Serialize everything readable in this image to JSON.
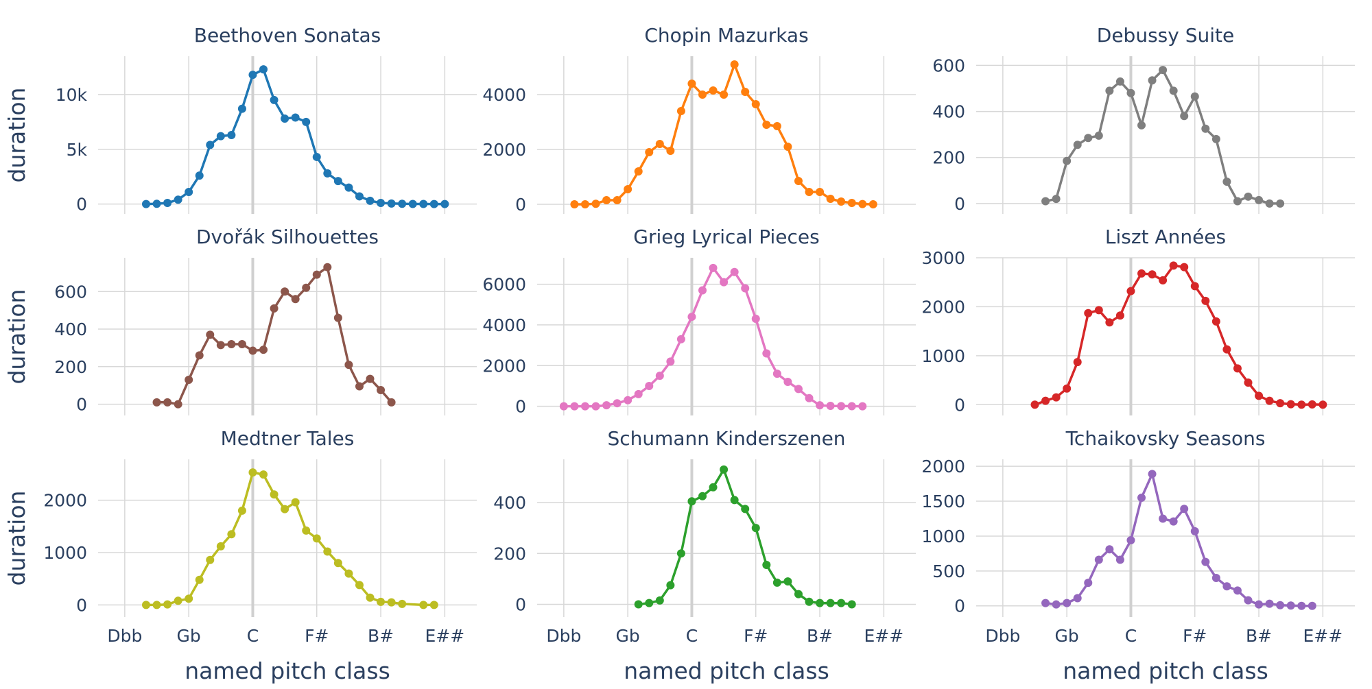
{
  "layout": {
    "ylabel": "duration",
    "xlabel": "named pitch class",
    "x_ticks": [
      "Dbb",
      "Gb",
      "C",
      "F#",
      "B#",
      "E##"
    ],
    "x_tick_positions": [
      -14,
      -8,
      -2,
      4,
      10,
      16
    ],
    "x_zero_line": -2,
    "xlim": [
      -16.5,
      19.0
    ]
  },
  "chart_data": [
    {
      "type": "line",
      "title": "Beethoven Sonatas",
      "color": "#1f77b4",
      "ylim": [
        -900,
        13500
      ],
      "y_ticks": [
        0,
        5000,
        10000
      ],
      "y_tick_labels": [
        "0",
        "5k",
        "10k"
      ],
      "x": [
        -12,
        -11,
        -10,
        -9,
        -8,
        -7,
        -6,
        -5,
        -4,
        -3,
        -2,
        -1,
        0,
        1,
        2,
        3,
        4,
        5,
        6,
        7,
        8,
        9,
        10,
        11,
        12,
        13,
        14,
        15,
        16
      ],
      "values": [
        0,
        20,
        100,
        400,
        1100,
        2600,
        5400,
        6200,
        6300,
        8700,
        11800,
        12300,
        9500,
        7800,
        7900,
        7500,
        4300,
        2800,
        2100,
        1500,
        700,
        300,
        100,
        50,
        20,
        10,
        5,
        0,
        0
      ]
    },
    {
      "type": "line",
      "title": "Chopin Mazurkas",
      "color": "#ff7f0e",
      "ylim": [
        -350,
        5400
      ],
      "y_ticks": [
        0,
        2000,
        4000
      ],
      "y_tick_labels": [
        "0",
        "2000",
        "4000"
      ],
      "x": [
        -13,
        -12,
        -11,
        -10,
        -9,
        -8,
        -7,
        -6,
        -5,
        -4,
        -3,
        -2,
        -1,
        0,
        1,
        2,
        3,
        4,
        5,
        6,
        7,
        8,
        9,
        10,
        11,
        12,
        13,
        14,
        15
      ],
      "values": [
        0,
        0,
        20,
        150,
        150,
        550,
        1200,
        1900,
        2200,
        1950,
        3400,
        4400,
        4000,
        4150,
        4000,
        5100,
        4100,
        3650,
        2900,
        2850,
        2100,
        850,
        450,
        450,
        200,
        100,
        50,
        10,
        0
      ]
    },
    {
      "type": "line",
      "title": "Debussy Suite",
      "color": "#7f7f7f",
      "ylim": [
        -45,
        640
      ],
      "y_ticks": [
        0,
        200,
        400,
        600
      ],
      "y_tick_labels": [
        "0",
        "200",
        "400",
        "600"
      ],
      "x": [
        -10,
        -9,
        -8,
        -7,
        -6,
        -5,
        -4,
        -3,
        -2,
        -1,
        0,
        1,
        2,
        3,
        4,
        5,
        6,
        7,
        8,
        9,
        10,
        11,
        12
      ],
      "values": [
        10,
        20,
        185,
        255,
        285,
        295,
        490,
        530,
        480,
        340,
        535,
        580,
        490,
        380,
        465,
        325,
        280,
        95,
        10,
        30,
        15,
        0,
        0
      ]
    },
    {
      "type": "line",
      "title": "Dvořák Silhouettes",
      "color": "#8c564b",
      "ylim": [
        -60,
        780
      ],
      "y_ticks": [
        0,
        200,
        400,
        600
      ],
      "y_tick_labels": [
        "0",
        "200",
        "400",
        "600"
      ],
      "x": [
        -11,
        -10,
        -9,
        -8,
        -7,
        -6,
        -5,
        -4,
        -3,
        -2,
        -1,
        0,
        1,
        2,
        3,
        4,
        5,
        6,
        7,
        8,
        9,
        10,
        11
      ],
      "values": [
        10,
        10,
        0,
        130,
        260,
        370,
        315,
        320,
        320,
        285,
        290,
        510,
        600,
        560,
        620,
        690,
        730,
        460,
        210,
        95,
        135,
        75,
        10
      ]
    },
    {
      "type": "line",
      "title": "Grieg Lyrical Pieces",
      "color": "#e377c2",
      "ylim": [
        -450,
        7300
      ],
      "y_ticks": [
        0,
        2000,
        4000,
        6000
      ],
      "y_tick_labels": [
        "0",
        "2000",
        "4000",
        "6000"
      ],
      "x": [
        -14,
        -13,
        -12,
        -11,
        -10,
        -9,
        -8,
        -7,
        -6,
        -5,
        -4,
        -3,
        -2,
        -1,
        0,
        1,
        2,
        3,
        4,
        5,
        6,
        7,
        8,
        9,
        10,
        11,
        12,
        13,
        14
      ],
      "values": [
        0,
        0,
        0,
        0,
        50,
        150,
        300,
        600,
        1000,
        1500,
        2200,
        3300,
        4400,
        5700,
        6800,
        6100,
        6600,
        5800,
        4300,
        2600,
        1600,
        1200,
        850,
        400,
        50,
        20,
        10,
        5,
        0
      ]
    },
    {
      "type": "line",
      "title": "Liszt Années",
      "color": "#d62728",
      "ylim": [
        -220,
        3000
      ],
      "y_ticks": [
        0,
        1000,
        2000,
        3000
      ],
      "y_tick_labels": [
        "0",
        "1000",
        "2000",
        "3000"
      ],
      "x": [
        -11,
        -10,
        -9,
        -8,
        -7,
        -6,
        -5,
        -4,
        -3,
        -2,
        -1,
        0,
        1,
        2,
        3,
        4,
        5,
        6,
        7,
        8,
        9,
        10,
        11,
        12,
        13,
        14,
        15,
        16
      ],
      "values": [
        0,
        80,
        150,
        330,
        870,
        1870,
        1930,
        1680,
        1820,
        2320,
        2680,
        2660,
        2540,
        2840,
        2810,
        2420,
        2120,
        1700,
        1130,
        740,
        450,
        180,
        80,
        30,
        10,
        0,
        5,
        0
      ]
    },
    {
      "type": "line",
      "title": "Medtner Tales",
      "color": "#bcbd22",
      "ylim": [
        -230,
        2780
      ],
      "y_ticks": [
        0,
        1000,
        2000
      ],
      "y_tick_labels": [
        "0",
        "1000",
        "2000"
      ],
      "x": [
        -12,
        -11,
        -10,
        -9,
        -8,
        -7,
        -6,
        -5,
        -4,
        -3,
        -2,
        -1,
        0,
        1,
        2,
        3,
        4,
        5,
        6,
        7,
        8,
        9,
        10,
        11,
        12,
        14,
        15
      ],
      "values": [
        0,
        0,
        10,
        80,
        120,
        480,
        860,
        1120,
        1350,
        1800,
        2530,
        2490,
        2110,
        1830,
        1960,
        1420,
        1270,
        1020,
        800,
        600,
        380,
        140,
        60,
        50,
        20,
        0,
        0
      ]
    },
    {
      "type": "line",
      "title": "Schumann Kinderszenen",
      "color": "#2ca02c",
      "ylim": [
        -50,
        570
      ],
      "y_ticks": [
        0,
        200,
        400
      ],
      "y_tick_labels": [
        "0",
        "200",
        "400"
      ],
      "x": [
        -7,
        -6,
        -5,
        -4,
        -3,
        -2,
        -1,
        0,
        1,
        2,
        3,
        4,
        5,
        6,
        7,
        8,
        9,
        10,
        11,
        12,
        13
      ],
      "values": [
        0,
        5,
        15,
        75,
        200,
        405,
        425,
        460,
        530,
        410,
        375,
        300,
        155,
        85,
        90,
        40,
        10,
        5,
        5,
        5,
        0
      ]
    },
    {
      "type": "line",
      "title": "Tchaikovsky Seasons",
      "color": "#9467bd",
      "ylim": [
        -160,
        2100
      ],
      "y_ticks": [
        0,
        500,
        1000,
        1500,
        2000
      ],
      "y_tick_labels": [
        "0",
        "500",
        "1000",
        "1500",
        "2000"
      ],
      "x": [
        -10,
        -9,
        -8,
        -7,
        -6,
        -5,
        -4,
        -3,
        -2,
        -1,
        0,
        1,
        2,
        3,
        4,
        5,
        6,
        7,
        8,
        9,
        10,
        11,
        12,
        13,
        14,
        15
      ],
      "values": [
        40,
        20,
        40,
        110,
        330,
        660,
        810,
        660,
        940,
        1550,
        1890,
        1250,
        1210,
        1390,
        1070,
        630,
        400,
        280,
        220,
        80,
        20,
        30,
        10,
        5,
        0,
        0
      ]
    }
  ]
}
